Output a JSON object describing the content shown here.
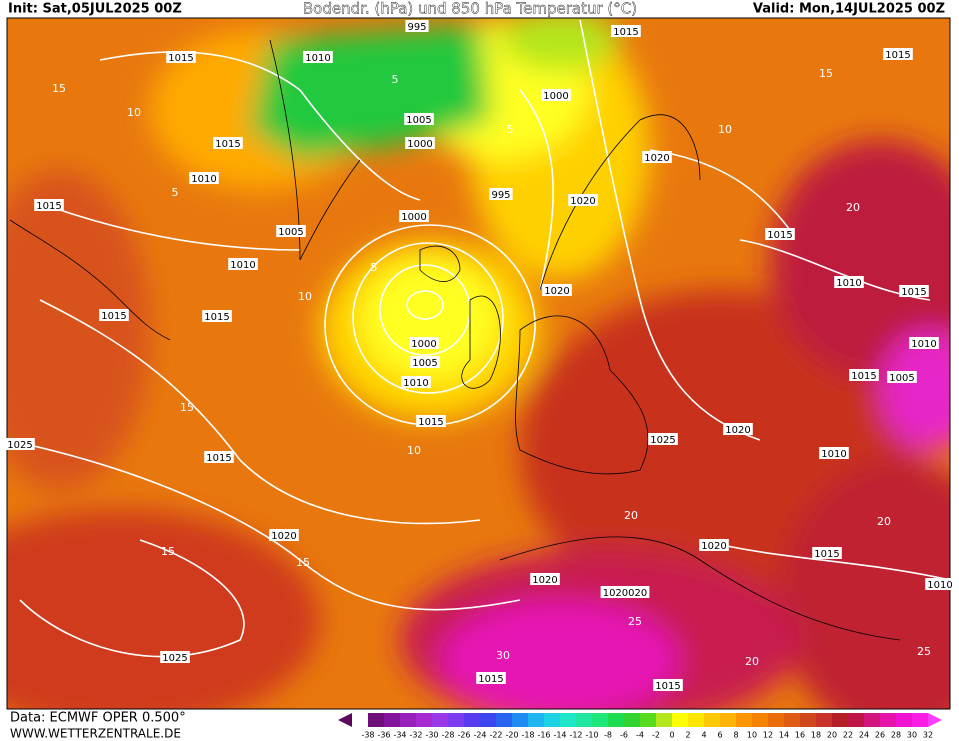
{
  "header": {
    "init": "Init: Sat,05JUL2025 00Z",
    "title": "Bodendr. (hPa) und 850 hPa Temperatur (°C)",
    "valid": "Valid: Mon,14JUL2025 00Z"
  },
  "footer": {
    "data": "Data: ECMWF OPER 0.500°",
    "site": "WWW.WETTERZENTRALE.DE"
  },
  "colorbar": {
    "labels": [
      -38,
      -36,
      -34,
      -32,
      -30,
      -28,
      -26,
      -24,
      -22,
      -20,
      -18,
      -16,
      -14,
      -12,
      -10,
      -8,
      -6,
      -4,
      -2,
      0,
      2,
      4,
      6,
      8,
      10,
      12,
      14,
      16,
      18,
      20,
      22,
      24,
      26,
      28,
      30,
      32
    ],
    "colors": [
      "#5a0a5a",
      "#6e0f7a",
      "#82159a",
      "#9620b8",
      "#a52ad2",
      "#9a3ae6",
      "#7d3cf0",
      "#5a3cf0",
      "#3c46f0",
      "#2864f0",
      "#1e8cf0",
      "#1eb4f0",
      "#1ed2e6",
      "#1ee6c8",
      "#1ee6a0",
      "#1ee678",
      "#1edc50",
      "#32d232",
      "#5adc1e",
      "#b4e61e",
      "#ffff00",
      "#ffe600",
      "#ffc800",
      "#ffb400",
      "#ff9600",
      "#f58200",
      "#eb6e0a",
      "#e15a14",
      "#d2461e",
      "#c83228",
      "#b41e28",
      "#be1446",
      "#d2147d",
      "#e614aa",
      "#f014d2",
      "#fa1ee6",
      "#ff3cff"
    ]
  },
  "isobar_labels": [
    1015,
    1010,
    995,
    1015,
    1015,
    1000,
    1005,
    1015,
    1000,
    1020,
    1010,
    995,
    1015,
    1020,
    1000,
    1005,
    1015,
    1010,
    1010,
    1020,
    1015,
    1015,
    1015,
    1000,
    1010,
    1005,
    1015,
    1005,
    1010,
    1015,
    1025,
    1025,
    1020,
    1015,
    1010,
    1020,
    1020,
    1015,
    1020,
    1020020,
    1010,
    1025,
    1015,
    1015
  ],
  "isotherm_labels": [
    15,
    10,
    5,
    10,
    5,
    15,
    10,
    15,
    15,
    20,
    25,
    30,
    20,
    25,
    20,
    15,
    10,
    20,
    5,
    5
  ]
}
